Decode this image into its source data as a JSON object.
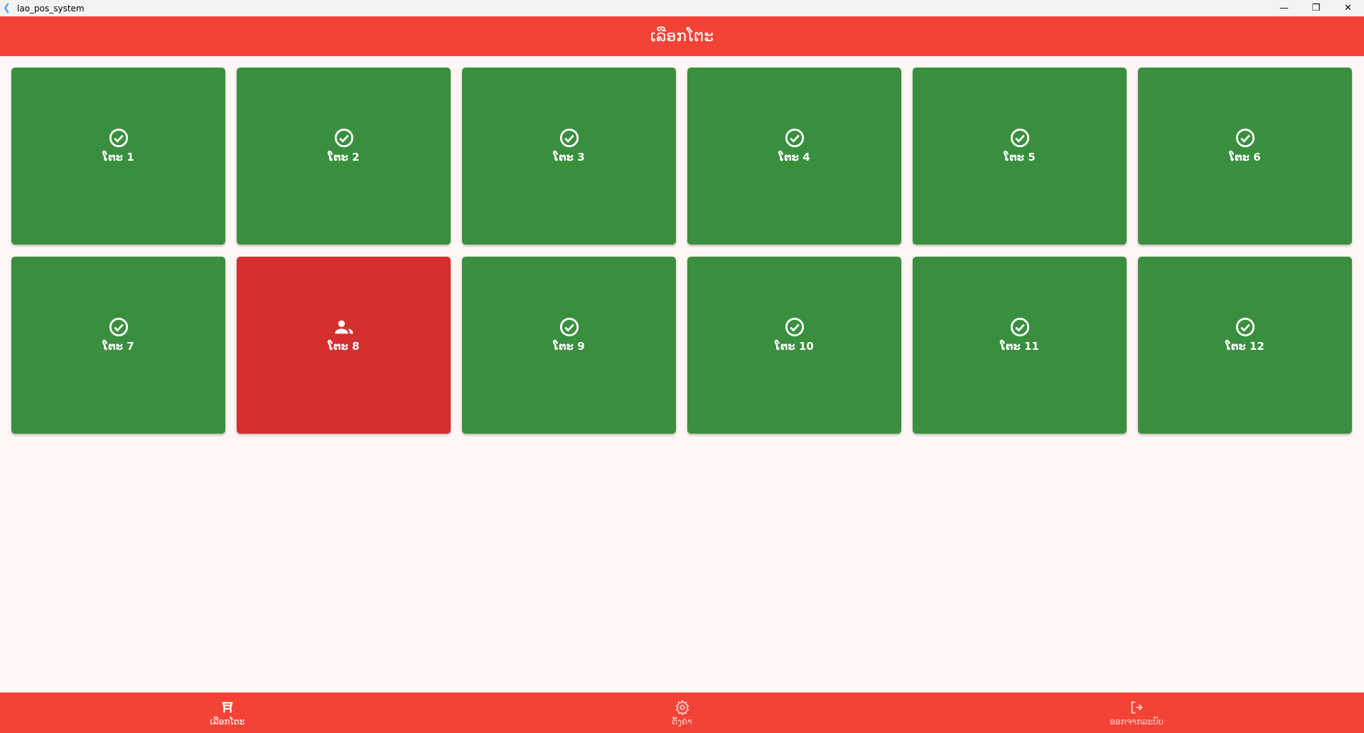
{
  "window": {
    "title": "lao_pos_system"
  },
  "header": {
    "title": "ເລືອກໂຕະ"
  },
  "colors": {
    "available": "#3a8f3f",
    "occupied": "#d32f2f",
    "accent": "#f44336"
  },
  "tables": [
    {
      "label": "ໂຕະ 1",
      "status": "available",
      "icon": "check-circle-icon"
    },
    {
      "label": "ໂຕະ 2",
      "status": "available",
      "icon": "check-circle-icon"
    },
    {
      "label": "ໂຕະ 3",
      "status": "available",
      "icon": "check-circle-icon"
    },
    {
      "label": "ໂຕະ 4",
      "status": "available",
      "icon": "check-circle-icon"
    },
    {
      "label": "ໂຕະ 5",
      "status": "available",
      "icon": "check-circle-icon"
    },
    {
      "label": "ໂຕະ 6",
      "status": "available",
      "icon": "check-circle-icon"
    },
    {
      "label": "ໂຕະ 7",
      "status": "available",
      "icon": "check-circle-icon"
    },
    {
      "label": "ໂຕະ 8",
      "status": "occupied",
      "icon": "people-icon"
    },
    {
      "label": "ໂຕະ 9",
      "status": "available",
      "icon": "check-circle-icon"
    },
    {
      "label": "ໂຕະ 10",
      "status": "available",
      "icon": "check-circle-icon"
    },
    {
      "label": "ໂຕະ 11",
      "status": "available",
      "icon": "check-circle-icon"
    },
    {
      "label": "ໂຕະ 12",
      "status": "available",
      "icon": "check-circle-icon"
    }
  ],
  "nav": {
    "items": [
      {
        "label": "ເລືອກໂຕະ",
        "icon": "table-icon",
        "active": true
      },
      {
        "label": "ຕັ້ງຄ່າ",
        "icon": "gear-icon",
        "active": false
      },
      {
        "label": "ອອກຈາກລະບົບ",
        "icon": "logout-icon",
        "active": false
      }
    ]
  }
}
